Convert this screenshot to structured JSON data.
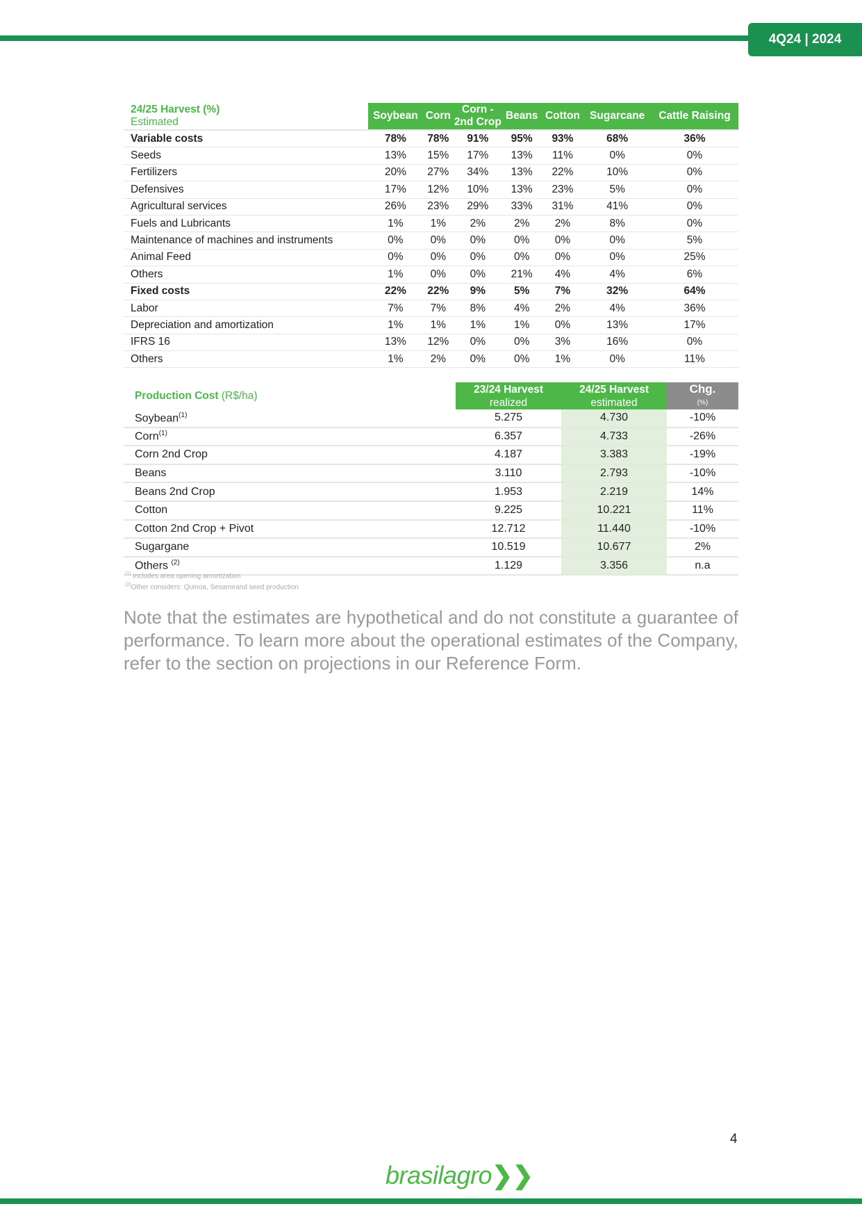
{
  "header": {
    "badge": "4Q24 | 2024"
  },
  "table1": {
    "title": "24/25 Harvest (%)",
    "subtitle": "Estimated",
    "columns": [
      "Soybean",
      "Corn",
      "Corn - 2nd Crop",
      "Beans",
      "Cotton",
      "Sugarcane",
      "Cattle Raising"
    ],
    "rows": [
      {
        "label": "Variable costs",
        "bold": true,
        "values": [
          "78%",
          "78%",
          "91%",
          "95%",
          "93%",
          "68%",
          "36%"
        ]
      },
      {
        "label": "Seeds",
        "values": [
          "13%",
          "15%",
          "17%",
          "13%",
          "11%",
          "0%",
          "0%"
        ]
      },
      {
        "label": "Fertilizers",
        "values": [
          "20%",
          "27%",
          "34%",
          "13%",
          "22%",
          "10%",
          "0%"
        ]
      },
      {
        "label": "Defensives",
        "values": [
          "17%",
          "12%",
          "10%",
          "13%",
          "23%",
          "5%",
          "0%"
        ]
      },
      {
        "label": "Agricultural services",
        "values": [
          "26%",
          "23%",
          "29%",
          "33%",
          "31%",
          "41%",
          "0%"
        ]
      },
      {
        "label": "Fuels and Lubricants",
        "values": [
          "1%",
          "1%",
          "2%",
          "2%",
          "2%",
          "8%",
          "0%"
        ]
      },
      {
        "label": "Maintenance of machines and instruments",
        "values": [
          "0%",
          "0%",
          "0%",
          "0%",
          "0%",
          "0%",
          "5%"
        ]
      },
      {
        "label": "Animal Feed",
        "values": [
          "0%",
          "0%",
          "0%",
          "0%",
          "0%",
          "0%",
          "25%"
        ]
      },
      {
        "label": "Others",
        "values": [
          "1%",
          "0%",
          "0%",
          "21%",
          "4%",
          "4%",
          "6%"
        ]
      },
      {
        "label": "Fixed costs",
        "bold": true,
        "values": [
          "22%",
          "22%",
          "9%",
          "5%",
          "7%",
          "32%",
          "64%"
        ]
      },
      {
        "label": "Labor",
        "values": [
          "7%",
          "7%",
          "8%",
          "4%",
          "2%",
          "4%",
          "36%"
        ]
      },
      {
        "label": "Depreciation and amortization",
        "values": [
          "1%",
          "1%",
          "1%",
          "1%",
          "0%",
          "13%",
          "17%"
        ]
      },
      {
        "label": "IFRS 16",
        "values": [
          "13%",
          "12%",
          "0%",
          "0%",
          "3%",
          "16%",
          "0%"
        ]
      },
      {
        "label": "Others",
        "values": [
          "1%",
          "2%",
          "0%",
          "0%",
          "1%",
          "0%",
          "11%"
        ]
      }
    ]
  },
  "table2": {
    "title": "Production Cost",
    "unit": "(R$/ha)",
    "col1": {
      "title": "23/24 Harvest",
      "sub": "realized"
    },
    "col2": {
      "title": "24/25 Harvest",
      "sub": "estimated"
    },
    "col3": {
      "title": "Chg.",
      "sub": "(%)"
    },
    "rows": [
      {
        "label": "Soybean",
        "sup": "(1)",
        "realized": "5.275",
        "estimated": "4.730",
        "chg": "-10%"
      },
      {
        "label": "Corn",
        "sup": "(1)",
        "realized": "6.357",
        "estimated": "4.733",
        "chg": "-26%"
      },
      {
        "label": "Corn 2nd Crop",
        "realized": "4.187",
        "estimated": "3.383",
        "chg": "-19%"
      },
      {
        "label": "Beans",
        "realized": "3.110",
        "estimated": "2.793",
        "chg": "-10%"
      },
      {
        "label": "Beans 2nd Crop",
        "realized": "1.953",
        "estimated": "2.219",
        "chg": "14%"
      },
      {
        "label": "Cotton",
        "realized": "9.225",
        "estimated": "10.221",
        "chg": "11%"
      },
      {
        "label": "Cotton 2nd Crop + Pivot",
        "realized": "12.712",
        "estimated": "11.440",
        "chg": "-10%"
      },
      {
        "label": "Sugargane",
        "realized": "10.519",
        "estimated": "10.677",
        "chg": "2%"
      },
      {
        "label": "Others ",
        "sup": "(2)",
        "realized": "1.129",
        "estimated": "3.356",
        "chg": "n.a"
      }
    ],
    "footnotes": [
      {
        "mark": "(1)",
        "text": " includes area opening amortization"
      },
      {
        "mark": "(2)",
        "text": "Other considers: Quinoa, Sesameand seed production"
      }
    ]
  },
  "note": "Note that the estimates are hypothetical and do not constitute a guarantee of performance. To learn more about the operational estimates of the Company, refer to the section on projections in our Reference Form.",
  "footer": {
    "page": "4",
    "logo": "brasilagro"
  },
  "colors": {
    "dark_green": "#1a9150",
    "green": "#4db848",
    "light_green": "#e2efdd",
    "gray": "#8c8c8c"
  }
}
